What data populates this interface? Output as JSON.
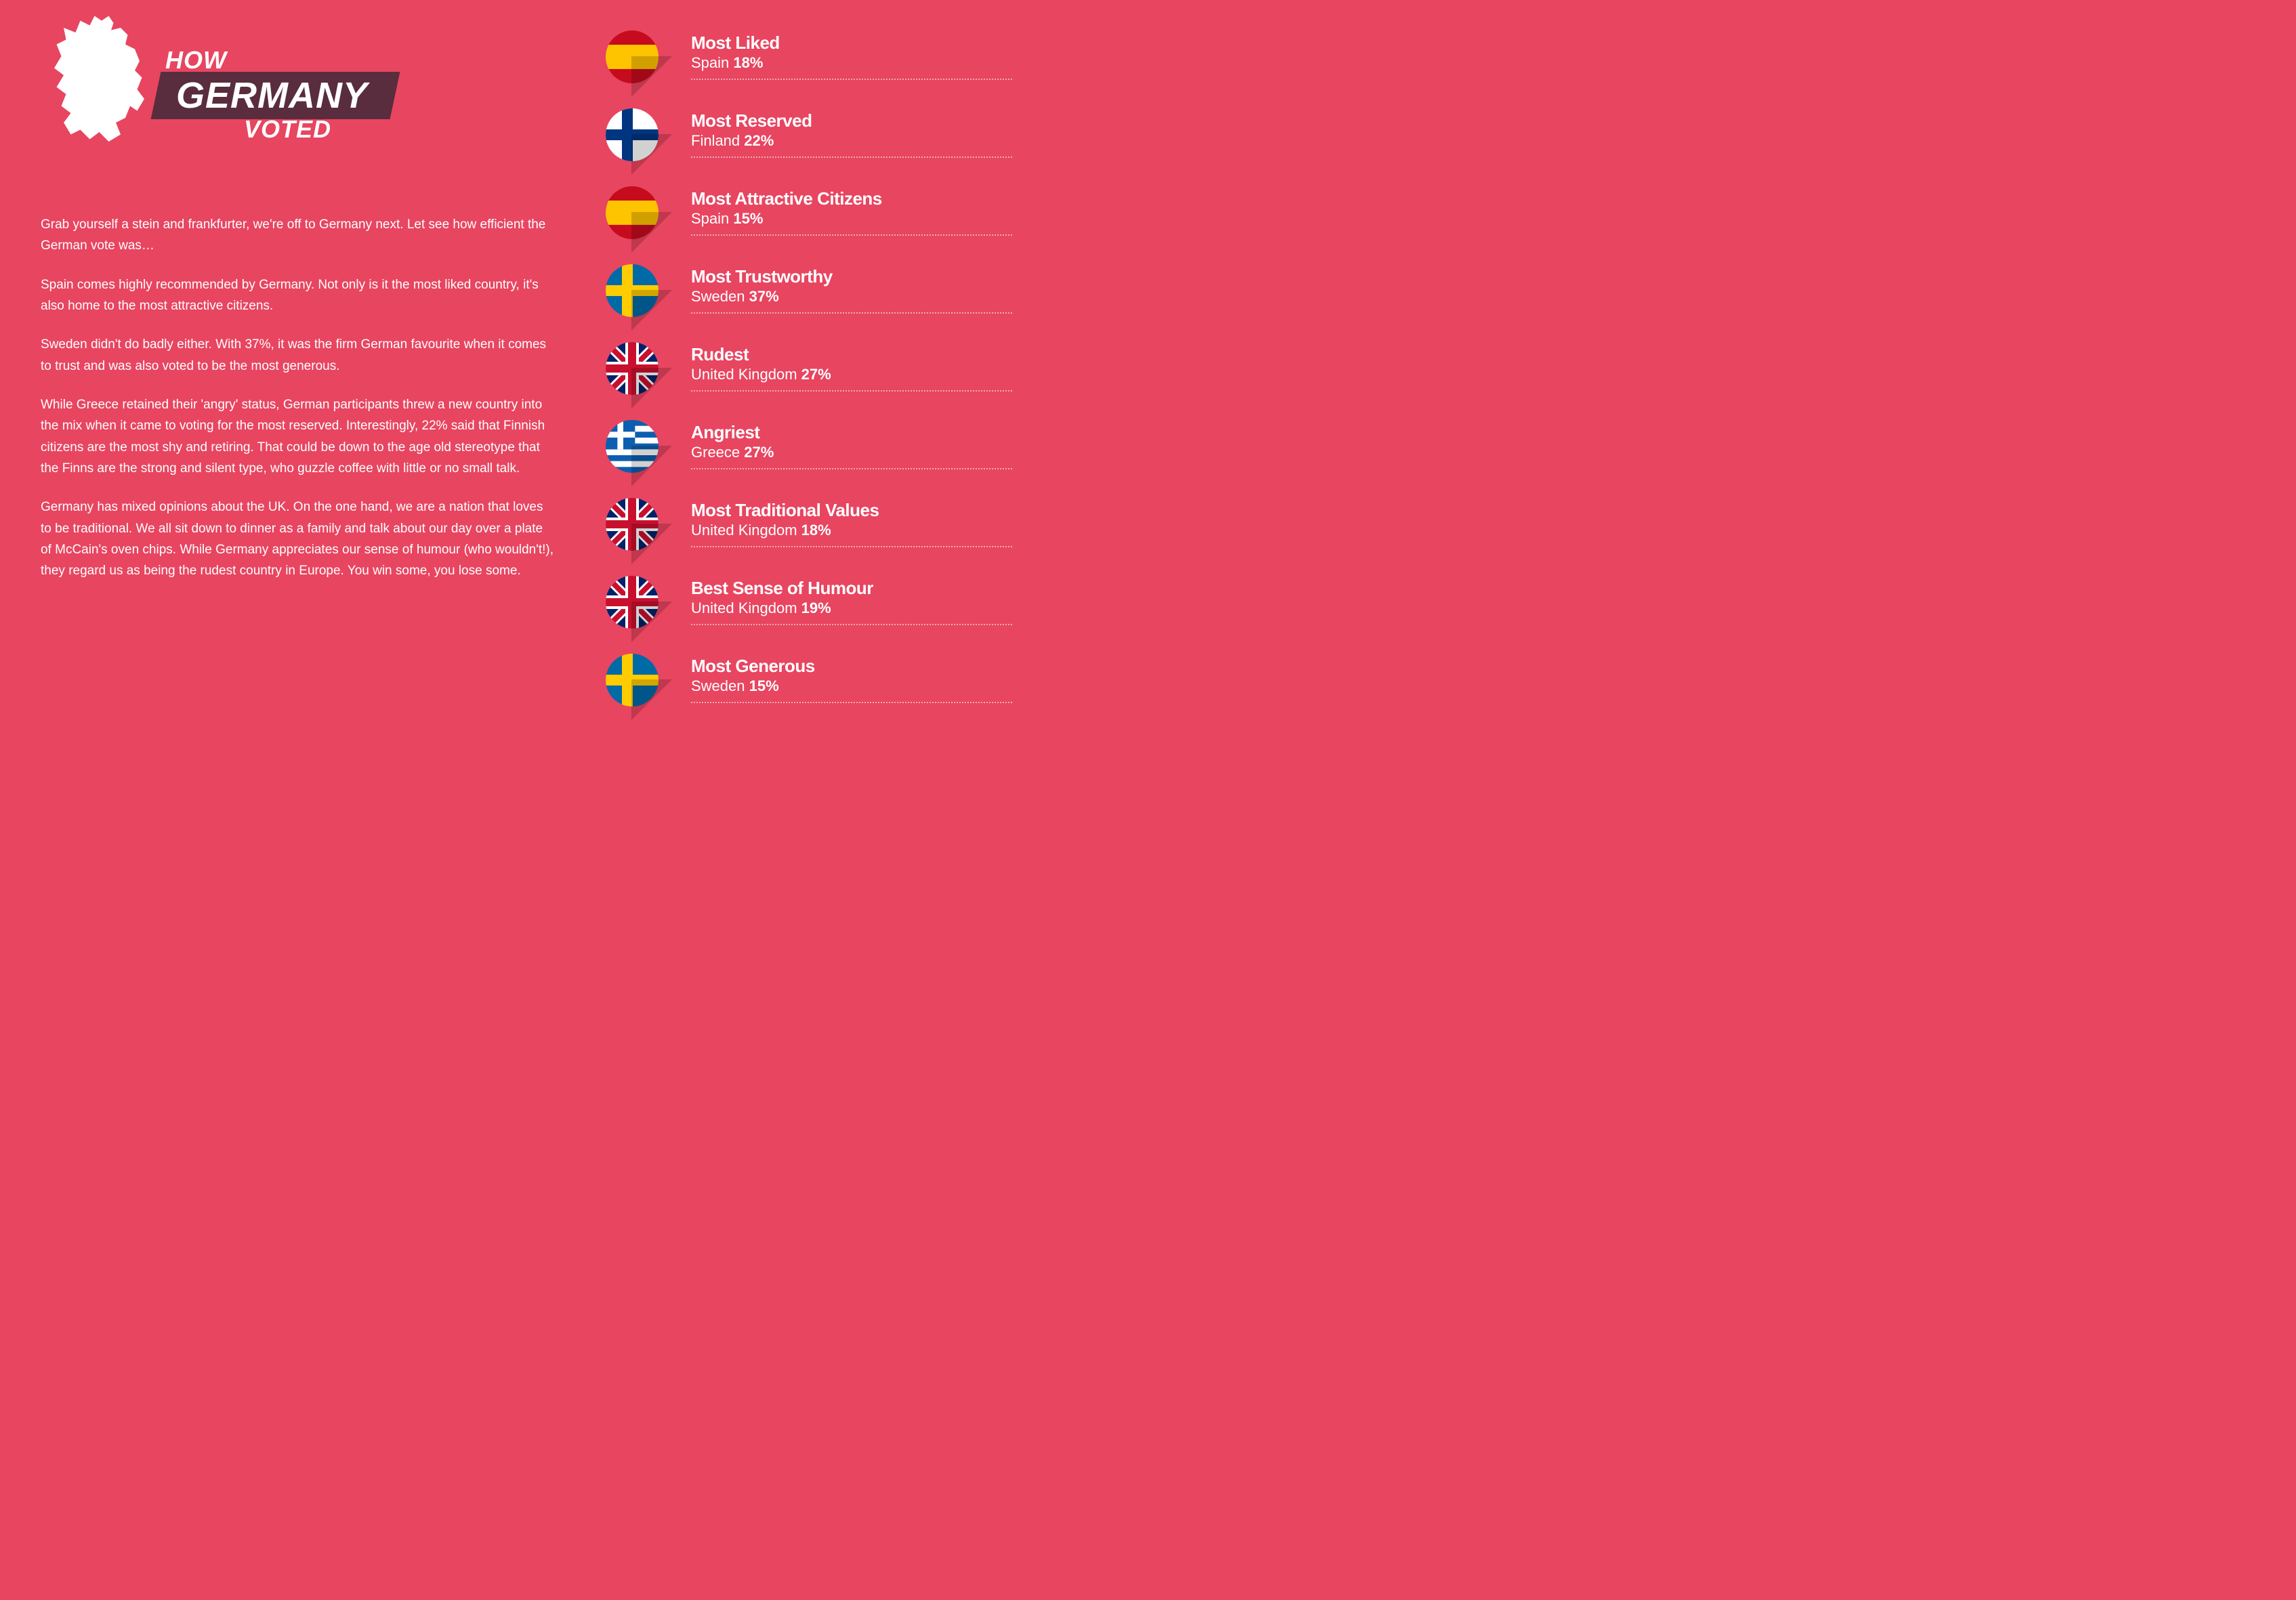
{
  "colors": {
    "background": "#e84560",
    "banner": "#592d3d",
    "text": "#ffffff",
    "dotted": "rgba(255,255,255,0.55)",
    "shadow": "rgba(0,0,0,0.18)"
  },
  "title": {
    "line1": "HOW",
    "line2": "GERMANY",
    "line3": "VOTED"
  },
  "paragraphs": [
    "Grab yourself a stein and frankfurter, we're off to Germany next. Let see how efficient the German vote was…",
    "Spain comes highly recommended by Germany. Not only is it the most liked country, it's also home to the most attractive citizens.",
    "Sweden didn't do badly either. With 37%, it was the firm German favourite when it comes to trust and was also voted to be the most generous.",
    "While Greece retained their 'angry' status, German participants threw a new country into the mix when it came to voting for the most reserved. Interestingly, 22% said that Finnish citizens are the most shy and retiring. That could be down to the age old stereotype that the Finns are the strong and silent type, who guzzle coffee with little or no small talk.",
    "Germany has mixed opinions about the UK. On the one hand, we are a nation that loves to be traditional. We all sit down to dinner as a family and talk about our day over a plate of McCain's oven chips. While Germany appreciates our sense of humour (who wouldn't!), they regard us as being the rudest country in Europe. You win some, you lose some."
  ],
  "stats": [
    {
      "title": "Most Liked",
      "country": "Spain",
      "pct": "18%",
      "flag": "spain"
    },
    {
      "title": "Most Reserved",
      "country": "Finland",
      "pct": "22%",
      "flag": "finland"
    },
    {
      "title": "Most Attractive Citizens",
      "country": "Spain",
      "pct": "15%",
      "flag": "spain"
    },
    {
      "title": "Most Trustworthy",
      "country": "Sweden",
      "pct": "37%",
      "flag": "sweden"
    },
    {
      "title": "Rudest",
      "country": "United Kingdom",
      "pct": "27%",
      "flag": "uk"
    },
    {
      "title": "Angriest",
      "country": "Greece",
      "pct": "27%",
      "flag": "greece"
    },
    {
      "title": "Most Traditional Values",
      "country": "United Kingdom",
      "pct": "18%",
      "flag": "uk"
    },
    {
      "title": "Best Sense of Humour",
      "country": "United Kingdom",
      "pct": "19%",
      "flag": "uk"
    },
    {
      "title": "Most Generous",
      "country": "Sweden",
      "pct": "15%",
      "flag": "sweden"
    }
  ],
  "flags": {
    "spain": {
      "type": "triband-h",
      "stripes": [
        "#c60b1e",
        "#ffc400",
        "#c60b1e"
      ],
      "ratios": [
        0.27,
        0.46,
        0.27
      ]
    },
    "finland": {
      "type": "nordic",
      "bg": "#ffffff",
      "cross": "#003580"
    },
    "sweden": {
      "type": "nordic",
      "bg": "#006aa7",
      "cross": "#fecc00"
    },
    "uk": {
      "type": "uk"
    },
    "greece": {
      "type": "greece"
    }
  }
}
